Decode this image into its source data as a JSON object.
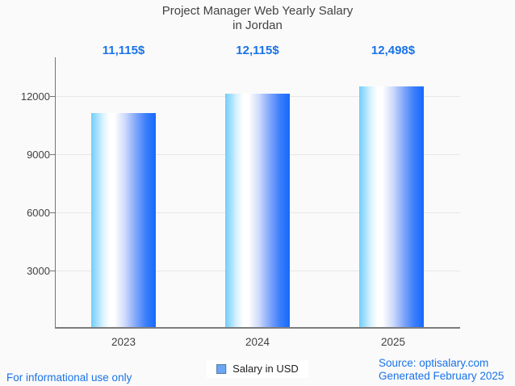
{
  "header": {
    "title_line1": "Project Manager Web Yearly Salary",
    "title_line2": "in Jordan"
  },
  "chart_data": {
    "type": "bar",
    "title": "Project Manager Web Yearly Salary in Jordan",
    "categories": [
      "2023",
      "2024",
      "2025"
    ],
    "series": [
      {
        "name": "Salary in USD",
        "values": [
          11115,
          12115,
          12498
        ]
      }
    ],
    "value_labels": [
      "11,115$",
      "12,115$",
      "12,498$"
    ],
    "xlabel": "",
    "ylabel": "",
    "ylim": [
      0,
      13000
    ],
    "yticks": [
      3000,
      6000,
      9000,
      12000
    ],
    "ytick_labels": [
      "3000",
      "6000",
      "9000",
      "12000"
    ],
    "grid": true,
    "legend_position": "bottom",
    "annotation_color": "#1a73e8",
    "bar_gradient": [
      "#70cdfb",
      "#ffffff",
      "#156afd"
    ]
  },
  "legend": {
    "label": "Salary in USD",
    "swatch_color": "#6ca6f5"
  },
  "footer": {
    "disclaimer": "For informational use only",
    "source": "Source: optisalary.com",
    "generated": "Generated February 2025"
  },
  "colors": {
    "accent_blue": "#1a73e8",
    "text_dark": "#424242",
    "background": "#fafafa",
    "gridline": "#e8e8e8",
    "axis": "#757575"
  }
}
